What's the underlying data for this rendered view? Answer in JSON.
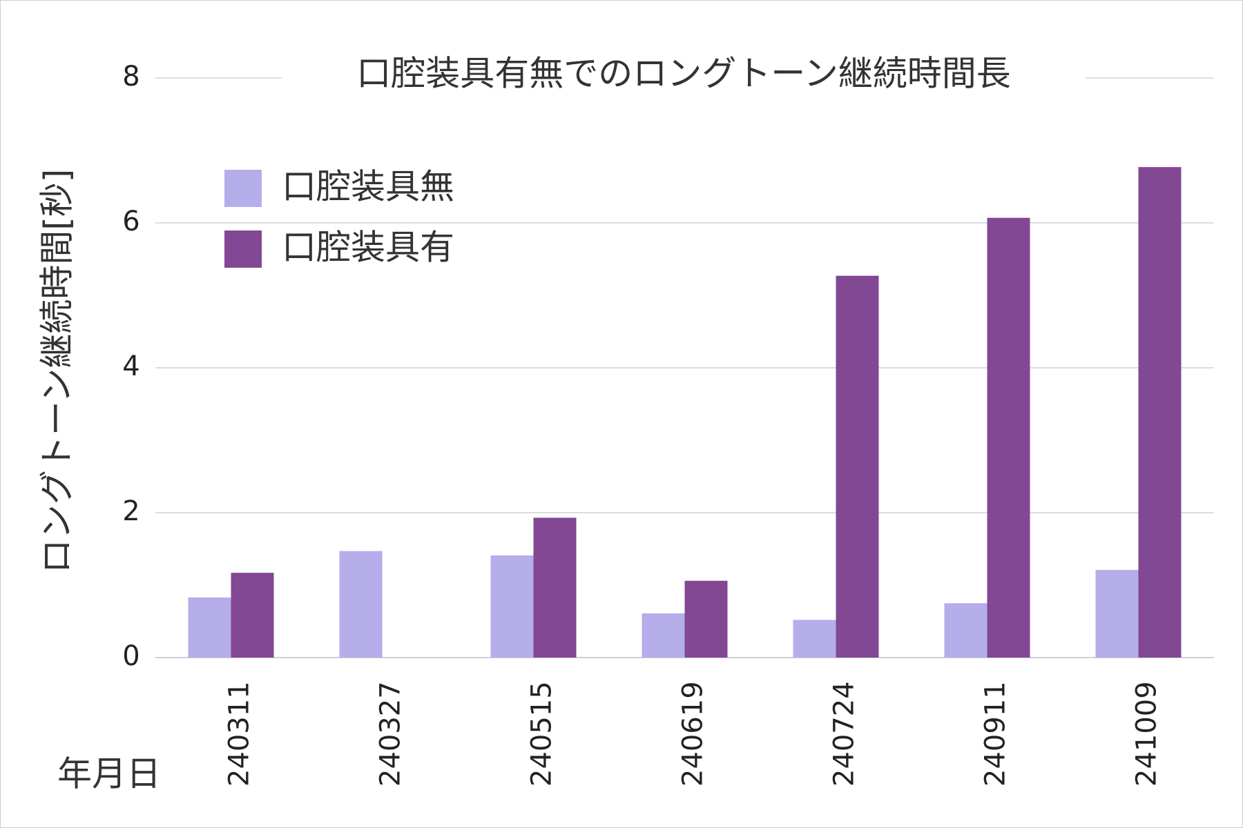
{
  "chart_data": {
    "type": "bar",
    "title": "口腔装具有無でのロングトーン継続時間長",
    "xlabel": "年月日",
    "ylabel": "ロングトーン継続時間[秒]",
    "ylim": [
      0,
      8
    ],
    "yticks": [
      "0",
      "2",
      "4",
      "6",
      "8"
    ],
    "grid": true,
    "legend_position": "top-left",
    "categories": [
      "240311",
      "240327",
      "240515",
      "240619",
      "240724",
      "240911",
      "241009"
    ],
    "series": [
      {
        "name": "口腔装具無",
        "color": "#b5aeea",
        "values": [
          0.83,
          1.47,
          1.41,
          0.61,
          0.52,
          0.75,
          1.21
        ]
      },
      {
        "name": "口腔装具有",
        "color": "#824893",
        "values": [
          1.17,
          0,
          1.93,
          1.06,
          5.27,
          6.07,
          6.77
        ]
      }
    ]
  }
}
